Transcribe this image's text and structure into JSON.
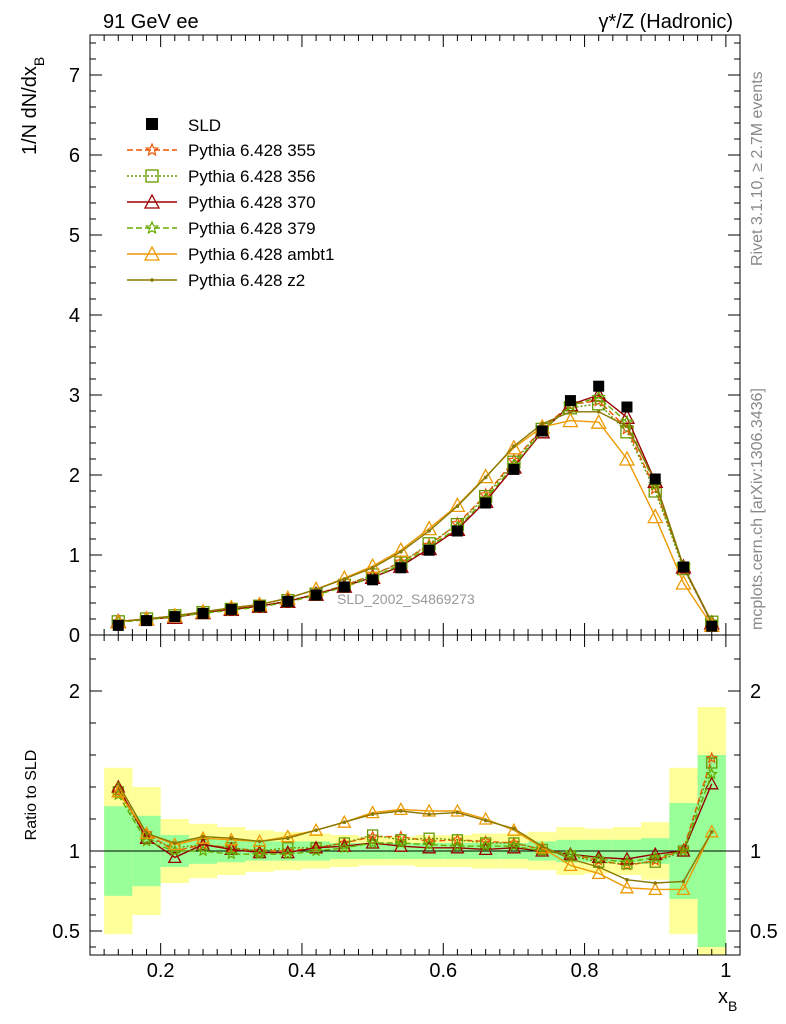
{
  "header": {
    "left_label": "91 GeV ee",
    "right_label": "γ*/Z (Hadronic)"
  },
  "side_labels": {
    "rivet": "Rivet 3.1.10, ≥ 2.7M events",
    "mcplots": "mcplots.cern.ch [arXiv:1306.3436]"
  },
  "watermark": "SLD_2002_S4869273",
  "chart_data": [
    {
      "type": "line",
      "panel": "main",
      "ylabel": "1/N dN/dx_B",
      "ylim": [
        0,
        7.5
      ],
      "y_ticks": [
        "0",
        "1",
        "2",
        "3",
        "4",
        "5",
        "6",
        "7"
      ],
      "x": [
        0.14,
        0.18,
        0.22,
        0.26,
        0.3,
        0.34,
        0.38,
        0.42,
        0.46,
        0.5,
        0.54,
        0.58,
        0.62,
        0.66,
        0.7,
        0.74,
        0.78,
        0.82,
        0.86,
        0.9,
        0.94,
        0.98
      ],
      "data_series": {
        "name": "SLD",
        "values": [
          0.12,
          0.18,
          0.23,
          0.27,
          0.32,
          0.36,
          0.42,
          0.5,
          0.6,
          0.69,
          0.84,
          1.06,
          1.3,
          1.65,
          2.07,
          2.55,
          2.93,
          3.11,
          2.85,
          1.95,
          0.85,
          0.11
        ]
      },
      "series": [
        {
          "name": "Pythia 6.428 355",
          "color": "#ee5500",
          "dash": "6,3",
          "marker": "star",
          "values": [
            0.165,
            0.2,
            0.23,
            0.28,
            0.32,
            0.36,
            0.42,
            0.51,
            0.62,
            0.75,
            0.91,
            1.12,
            1.39,
            1.75,
            2.18,
            2.58,
            2.88,
            2.93,
            2.58,
            1.83,
            0.86,
            0.16
          ]
        },
        {
          "name": "Pythia 6.428 356",
          "color": "#669900",
          "dash": "2,2",
          "marker": "square",
          "values": [
            0.165,
            0.2,
            0.24,
            0.28,
            0.32,
            0.36,
            0.43,
            0.51,
            0.62,
            0.75,
            0.9,
            1.14,
            1.38,
            1.73,
            2.16,
            2.57,
            2.84,
            2.89,
            2.54,
            1.8,
            0.83,
            0.16
          ]
        },
        {
          "name": "Pythia 6.428 370",
          "color": "#990000",
          "dash": "",
          "marker": "triangle",
          "values": [
            0.17,
            0.2,
            0.22,
            0.28,
            0.32,
            0.36,
            0.42,
            0.51,
            0.61,
            0.72,
            0.86,
            1.08,
            1.32,
            1.67,
            2.1,
            2.54,
            2.88,
            3.0,
            2.72,
            1.92,
            0.85,
            0.15
          ]
        },
        {
          "name": "Pythia 6.428 379",
          "color": "#66aa00",
          "dash": "6,3",
          "marker": "star",
          "values": [
            0.16,
            0.19,
            0.23,
            0.27,
            0.31,
            0.35,
            0.41,
            0.5,
            0.6,
            0.72,
            0.88,
            1.1,
            1.34,
            1.7,
            2.12,
            2.55,
            2.87,
            2.97,
            2.66,
            1.88,
            0.85,
            0.16
          ]
        },
        {
          "name": "Pythia 6.428 ambt1",
          "color": "#ee9900",
          "dash": "",
          "marker": "triangle",
          "values": [
            0.165,
            0.2,
            0.24,
            0.29,
            0.34,
            0.38,
            0.46,
            0.57,
            0.71,
            0.86,
            1.06,
            1.33,
            1.62,
            1.98,
            2.34,
            2.6,
            2.68,
            2.66,
            2.2,
            1.48,
            0.65,
            0.12
          ]
        },
        {
          "name": "Pythia 6.428 z2",
          "color": "#887700",
          "dash": "",
          "marker": "dot",
          "values": [
            0.17,
            0.2,
            0.24,
            0.29,
            0.34,
            0.38,
            0.46,
            0.57,
            0.7,
            0.84,
            1.04,
            1.3,
            1.61,
            1.97,
            2.36,
            2.64,
            2.79,
            2.79,
            2.61,
            1.92,
            0.86,
            0.16
          ]
        }
      ]
    },
    {
      "type": "line",
      "panel": "ratio",
      "ylabel": "Ratio to SLD",
      "xlabel": "x_B",
      "ylim": [
        0.35,
        2.35
      ],
      "y_ticks": [
        "0.5",
        "1",
        "2"
      ],
      "x_ticks": [
        "0.2",
        "0.4",
        "0.6",
        "0.8",
        "1"
      ],
      "x_range": [
        0.1,
        1.02
      ],
      "bin_edges": [
        0.12,
        0.16,
        0.2,
        0.24,
        0.28,
        0.32,
        0.36,
        0.4,
        0.44,
        0.48,
        0.52,
        0.56,
        0.6,
        0.64,
        0.68,
        0.72,
        0.76,
        0.8,
        0.84,
        0.88,
        0.92,
        0.96,
        1.0
      ],
      "band_inner": [
        0.28,
        0.22,
        0.1,
        0.08,
        0.07,
        0.06,
        0.06,
        0.06,
        0.05,
        0.05,
        0.05,
        0.05,
        0.05,
        0.05,
        0.05,
        0.06,
        0.07,
        0.07,
        0.07,
        0.08,
        0.3,
        0.6
      ],
      "band_outer": [
        0.52,
        0.4,
        0.2,
        0.17,
        0.15,
        0.13,
        0.12,
        0.11,
        0.1,
        0.09,
        0.09,
        0.1,
        0.1,
        0.11,
        0.11,
        0.12,
        0.15,
        0.14,
        0.15,
        0.18,
        0.52,
        0.9
      ],
      "series_ratios": [
        [
          1.37,
          1.11,
          1.0,
          1.04,
          1.02,
          1.0,
          1.0,
          1.02,
          1.05,
          1.09,
          1.09,
          1.06,
          1.07,
          1.06,
          1.05,
          1.01,
          0.98,
          0.94,
          0.91,
          0.94,
          1.01,
          1.58
        ],
        [
          1.37,
          1.08,
          1.02,
          1.04,
          1.02,
          1.0,
          1.02,
          1.02,
          1.05,
          1.1,
          1.07,
          1.08,
          1.07,
          1.05,
          1.05,
          1.01,
          0.97,
          0.93,
          0.92,
          0.93,
          1.0,
          1.55
        ],
        [
          1.4,
          1.08,
          0.96,
          1.04,
          1.01,
          0.99,
          0.99,
          1.02,
          1.03,
          1.05,
          1.03,
          1.02,
          1.02,
          1.01,
          1.02,
          1.0,
          0.98,
          0.96,
          0.95,
          0.98,
          1.0,
          1.42
        ],
        [
          1.35,
          1.06,
          1.0,
          1.0,
          0.98,
          0.98,
          0.98,
          1.0,
          1.02,
          1.05,
          1.05,
          1.04,
          1.03,
          1.03,
          1.03,
          1.0,
          0.98,
          0.95,
          0.93,
          0.96,
          1.0,
          1.48
        ],
        [
          1.37,
          1.11,
          1.04,
          1.08,
          1.07,
          1.06,
          1.09,
          1.13,
          1.18,
          1.24,
          1.26,
          1.25,
          1.25,
          1.2,
          1.13,
          1.02,
          0.91,
          0.86,
          0.77,
          0.76,
          0.76,
          1.12
        ],
        [
          1.42,
          1.11,
          1.05,
          1.09,
          1.08,
          1.06,
          1.08,
          1.13,
          1.18,
          1.23,
          1.25,
          1.23,
          1.24,
          1.19,
          1.14,
          1.03,
          0.95,
          0.9,
          0.82,
          0.8,
          0.81,
          1.12
        ]
      ]
    }
  ]
}
